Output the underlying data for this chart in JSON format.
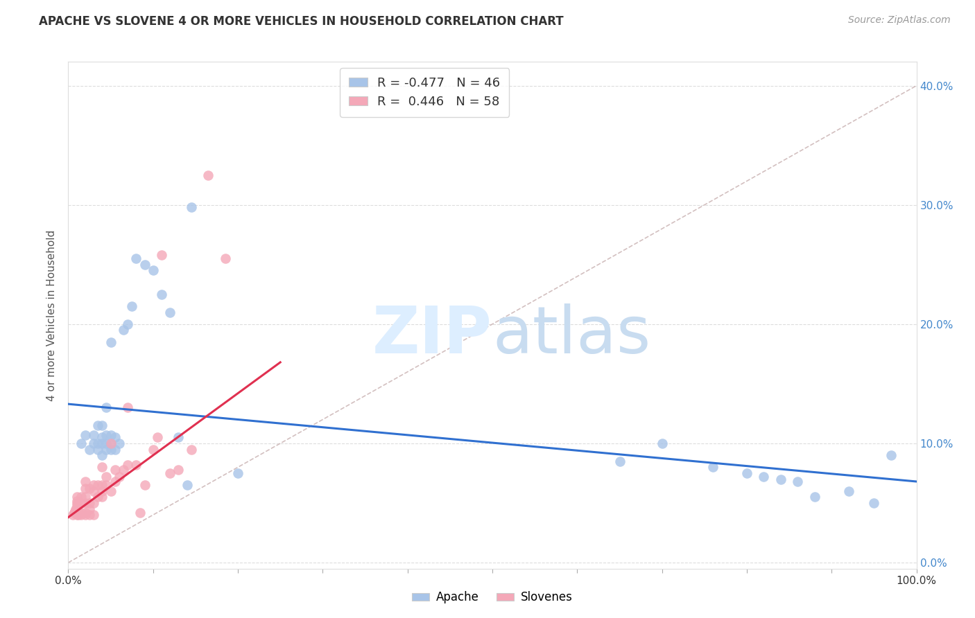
{
  "title": "APACHE VS SLOVENE 4 OR MORE VEHICLES IN HOUSEHOLD CORRELATION CHART",
  "source": "Source: ZipAtlas.com",
  "ylabel": "4 or more Vehicles in Household",
  "apache_R": -0.477,
  "apache_N": 46,
  "slovene_R": 0.446,
  "slovene_N": 58,
  "apache_color": "#a8c4e8",
  "slovene_color": "#f4a8b8",
  "apache_line_color": "#3070d0",
  "slovene_line_color": "#e03050",
  "diagonal_color": "#c8b0b0",
  "xlim": [
    0.0,
    1.0
  ],
  "ylim": [
    -0.005,
    0.42
  ],
  "ytick_positions": [
    0.0,
    0.1,
    0.2,
    0.3,
    0.4
  ],
  "ytick_labels_right": [
    "0.0%",
    "10.0%",
    "20.0%",
    "30.0%",
    "40.0%"
  ],
  "apache_x": [
    0.015,
    0.02,
    0.025,
    0.03,
    0.03,
    0.035,
    0.035,
    0.035,
    0.04,
    0.04,
    0.04,
    0.04,
    0.045,
    0.045,
    0.045,
    0.045,
    0.05,
    0.05,
    0.05,
    0.05,
    0.055,
    0.055,
    0.06,
    0.065,
    0.07,
    0.075,
    0.08,
    0.09,
    0.1,
    0.11,
    0.12,
    0.13,
    0.14,
    0.145,
    0.2,
    0.65,
    0.7,
    0.76,
    0.8,
    0.82,
    0.84,
    0.86,
    0.88,
    0.92,
    0.95,
    0.97
  ],
  "apache_y": [
    0.1,
    0.107,
    0.095,
    0.1,
    0.107,
    0.095,
    0.1,
    0.115,
    0.09,
    0.1,
    0.105,
    0.115,
    0.095,
    0.1,
    0.107,
    0.13,
    0.095,
    0.1,
    0.107,
    0.185,
    0.095,
    0.105,
    0.1,
    0.195,
    0.2,
    0.215,
    0.255,
    0.25,
    0.245,
    0.225,
    0.21,
    0.105,
    0.065,
    0.298,
    0.075,
    0.085,
    0.1,
    0.08,
    0.075,
    0.072,
    0.07,
    0.068,
    0.055,
    0.06,
    0.05,
    0.09
  ],
  "slovene_x": [
    0.005,
    0.007,
    0.008,
    0.009,
    0.01,
    0.01,
    0.01,
    0.01,
    0.01,
    0.01,
    0.01,
    0.01,
    0.012,
    0.015,
    0.015,
    0.015,
    0.015,
    0.02,
    0.02,
    0.02,
    0.02,
    0.02,
    0.02,
    0.025,
    0.025,
    0.025,
    0.025,
    0.03,
    0.03,
    0.03,
    0.03,
    0.035,
    0.035,
    0.04,
    0.04,
    0.04,
    0.04,
    0.045,
    0.045,
    0.05,
    0.05,
    0.055,
    0.055,
    0.06,
    0.065,
    0.07,
    0.07,
    0.08,
    0.085,
    0.09,
    0.1,
    0.105,
    0.11,
    0.12,
    0.13,
    0.145,
    0.165,
    0.185
  ],
  "slovene_y": [
    0.04,
    0.042,
    0.043,
    0.045,
    0.04,
    0.042,
    0.044,
    0.046,
    0.048,
    0.05,
    0.052,
    0.055,
    0.04,
    0.04,
    0.042,
    0.05,
    0.055,
    0.04,
    0.042,
    0.05,
    0.055,
    0.062,
    0.068,
    0.04,
    0.045,
    0.05,
    0.062,
    0.04,
    0.05,
    0.06,
    0.065,
    0.055,
    0.065,
    0.055,
    0.06,
    0.065,
    0.08,
    0.065,
    0.072,
    0.06,
    0.1,
    0.068,
    0.078,
    0.072,
    0.078,
    0.082,
    0.13,
    0.082,
    0.042,
    0.065,
    0.095,
    0.105,
    0.258,
    0.075,
    0.078,
    0.095,
    0.325,
    0.255
  ],
  "apache_line_x": [
    0.0,
    1.0
  ],
  "apache_line_y": [
    0.133,
    0.068
  ],
  "slovene_line_x": [
    0.0,
    0.25
  ],
  "slovene_line_y": [
    0.038,
    0.168
  ]
}
